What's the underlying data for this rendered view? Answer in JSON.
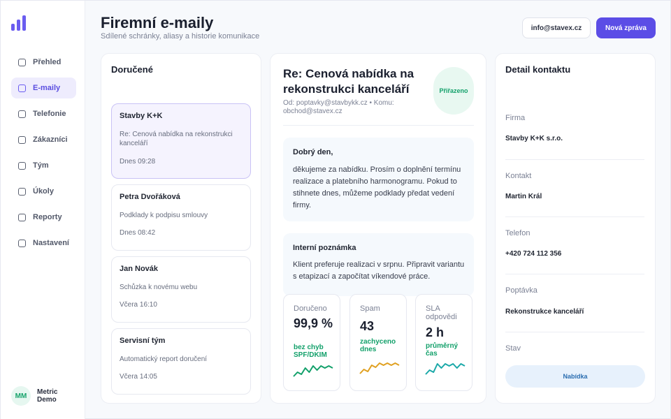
{
  "brand": {
    "accent": "#5b4de6",
    "success": "#12a06a",
    "warning": "#e0a020",
    "teal": "#1aa8a8"
  },
  "sidebar": {
    "logo_icon": "bar-chart-icon",
    "items": [
      {
        "label": "Přehled",
        "active": false
      },
      {
        "label": "E-maily",
        "active": true
      },
      {
        "label": "Telefonie",
        "active": false
      },
      {
        "label": "Zákazníci",
        "active": false
      },
      {
        "label": "Tým",
        "active": false
      },
      {
        "label": "Úkoly",
        "active": false
      },
      {
        "label": "Reporty",
        "active": false
      },
      {
        "label": "Nastavení",
        "active": false
      }
    ],
    "user": {
      "initials": "MM",
      "name": "Metric Demo"
    }
  },
  "header": {
    "title": "Firemní e-maily",
    "subtitle": "Sdílené schránky, aliasy a historie komunikace",
    "mailbox_button": "info@stavex.cz",
    "new_button": "Nová zpráva"
  },
  "inbox": {
    "title": "Doručené",
    "messages": [
      {
        "from": "Stavby K+K",
        "subject": "Re: Cenová nabídka na rekonstrukci kanceláří",
        "time": "Dnes 09:28"
      },
      {
        "from": "Petra Dvořáková",
        "subject": "Podklady k podpisu smlouvy",
        "time": "Dnes 08:42"
      },
      {
        "from": "Jan Novák",
        "subject": "Schůzka k novému webu",
        "time": "Včera 16:10"
      },
      {
        "from": "Servisní tým",
        "subject": "Automatický report doručení",
        "time": "Včera 14:05"
      }
    ]
  },
  "detail": {
    "title": "Re: Cenová nabídka na rekonstrukci kanceláří",
    "meta": "Od: poptavky@stavbykk.cz • Komu: obchod@stavex.cz",
    "badge": "Přiřazeno",
    "message": {
      "greeting": "Dobrý den,",
      "body": "děkujeme za nabídku. Prosím o doplnění termínu realizace a platebního harmonogramu. Pokud to stihnete dnes, můžeme podklady předat vedení firmy."
    },
    "note": {
      "title": "Interní poznámka",
      "body": "Klient preferuje realizaci v srpnu. Připravit variantu s etapizací a započítat víkendové práce."
    },
    "stats": [
      {
        "label": "Doručeno",
        "value": "99,9 %",
        "sub": "bez chyb SPF/DKIM",
        "color": "#12a06a",
        "trend": [
          3,
          5,
          4,
          7,
          5,
          8,
          6,
          8,
          7,
          8,
          7
        ]
      },
      {
        "label": "Spam",
        "value": "43",
        "sub": "zachyceno dnes",
        "color": "#e0a020",
        "trend": [
          3,
          5,
          4,
          7,
          6,
          8,
          7,
          8,
          7,
          8,
          7
        ]
      },
      {
        "label": "SLA odpovědi",
        "value": "2 h",
        "sub": "průměrný čas",
        "color": "#1aa8a8",
        "trend": [
          3,
          5,
          4,
          8,
          6,
          8,
          7,
          8,
          6,
          8,
          7
        ]
      }
    ]
  },
  "contact": {
    "title": "Detail kontaktu",
    "fields": [
      {
        "label": "Firma",
        "value": "Stavby K+K s.r.o."
      },
      {
        "label": "Kontakt",
        "value": "Martin Král"
      },
      {
        "label": "Telefon",
        "value": "+420 724 112 356"
      },
      {
        "label": "Poptávka",
        "value": "Rekonstrukce kanceláří"
      }
    ],
    "status_label": "Stav",
    "status_value": "Nabídka"
  }
}
